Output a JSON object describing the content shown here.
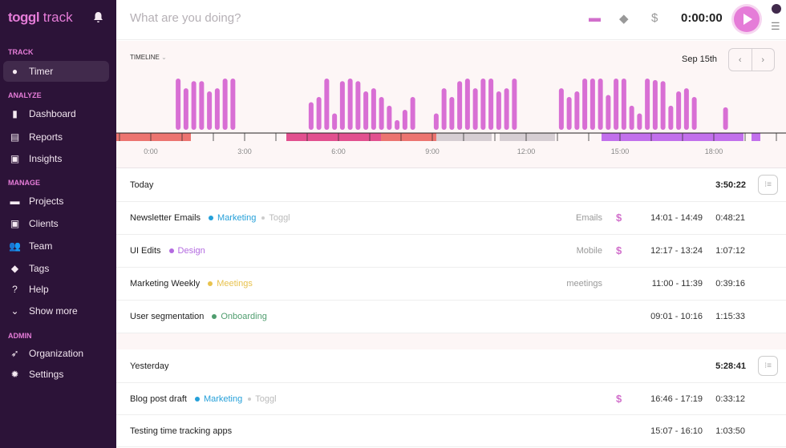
{
  "sidebar": {
    "logo_bold": "toggl",
    "logo_light": "track",
    "sections": {
      "track": "TRACK",
      "analyze": "ANALYZE",
      "manage": "MANAGE",
      "admin": "ADMIN"
    },
    "items": [
      {
        "label": "Timer",
        "icon": "clock-icon"
      },
      {
        "label": "Dashboard",
        "icon": "bar-chart-icon"
      },
      {
        "label": "Reports",
        "icon": "report-icon"
      },
      {
        "label": "Insights",
        "icon": "insights-icon"
      },
      {
        "label": "Projects",
        "icon": "folder-icon"
      },
      {
        "label": "Clients",
        "icon": "client-icon"
      },
      {
        "label": "Team",
        "icon": "team-icon"
      },
      {
        "label": "Tags",
        "icon": "tag-icon"
      },
      {
        "label": "Help",
        "icon": "help-icon"
      },
      {
        "label": "Show more",
        "icon": "chevron-down-icon"
      },
      {
        "label": "Organization",
        "icon": "rocket-icon"
      },
      {
        "label": "Settings",
        "icon": "gear-icon"
      }
    ]
  },
  "topbar": {
    "placeholder": "What are you doing?",
    "timer": "0:00:00"
  },
  "timeline": {
    "label": "TIMELINE",
    "date": "Sep 15th",
    "prev": "‹",
    "next": "›",
    "hour_labels": [
      "0:00",
      "3:00",
      "6:00",
      "9:00",
      "12:00",
      "15:00",
      "18:00"
    ],
    "activity": [
      {
        "start_slot": 3,
        "levels": [
          1,
          0.81,
          0.95,
          0.95,
          0.75,
          0.81,
          1,
          1
        ]
      },
      {
        "start_slot": 20,
        "levels": [
          0.54,
          0.64,
          1,
          0.32,
          0.95,
          1,
          0.95,
          0.75,
          0.81,
          0.64,
          0.47,
          0.19,
          0.39,
          0.64
        ]
      },
      {
        "start_slot": 36,
        "levels": [
          0.32,
          0.81,
          0.64,
          0.95,
          1,
          0.81,
          1,
          1,
          0.75,
          0.81,
          1
        ]
      },
      {
        "start_slot": 52,
        "levels": [
          0.81,
          0.64,
          0.75,
          1,
          1,
          1,
          0.68,
          1,
          1,
          0.47,
          0.32,
          1,
          0.97,
          0.95,
          0.47,
          0.75,
          0.81,
          0.64
        ]
      },
      {
        "start_slot": 73,
        "levels": [
          0.44
        ]
      }
    ],
    "colors": {
      "bar": "#d86fd4",
      "red": "#ec7470",
      "pink": "#e2508f",
      "grey": "#d6ced3",
      "purple": "#c270ec"
    }
  },
  "groups": [
    {
      "title": "Today",
      "total": "3:50:22",
      "entries": [
        {
          "desc": "Newsletter Emails",
          "project": "Marketing",
          "project_color": "#25a0d9",
          "client": "Toggl",
          "tag": "Emails",
          "billable": "$",
          "range": "14:01 - 14:49",
          "duration": "0:48:21"
        },
        {
          "desc": "UI Edits",
          "project": "Design",
          "project_color": "#b36ae0",
          "client": "",
          "tag": "Mobile",
          "billable": "$",
          "range": "12:17 - 13:24",
          "duration": "1:07:12"
        },
        {
          "desc": "Marketing Weekly",
          "project": "Meetings",
          "project_color": "#e8c24d",
          "client": "",
          "tag": "meetings",
          "billable": "",
          "range": "11:00 - 11:39",
          "duration": "0:39:16"
        },
        {
          "desc": "User segmentation",
          "project": "Onboarding",
          "project_color": "#4f9d6e",
          "client": "",
          "tag": "",
          "billable": "",
          "range": "09:01 - 10:16",
          "duration": "1:15:33"
        }
      ]
    },
    {
      "title": "Yesterday",
      "total": "5:28:41",
      "entries": [
        {
          "desc": "Blog post draft",
          "project": "Marketing",
          "project_color": "#25a0d9",
          "client": "Toggl",
          "tag": "",
          "billable": "$",
          "range": "16:46 - 17:19",
          "duration": "0:33:12"
        },
        {
          "desc": "Testing time tracking apps",
          "project": "",
          "project_color": "",
          "client": "",
          "tag": "",
          "billable": "",
          "range": "15:07 - 16:10",
          "duration": "1:03:50"
        }
      ]
    }
  ]
}
